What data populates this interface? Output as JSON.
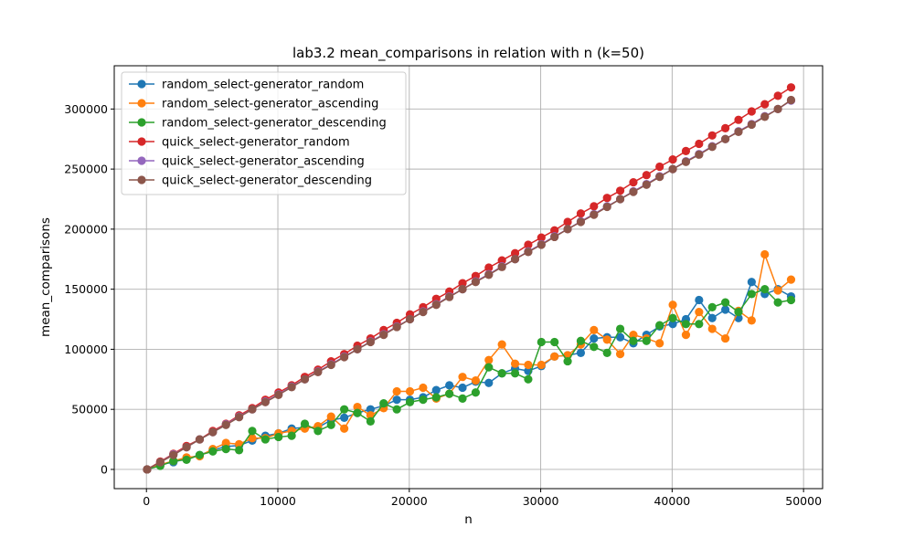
{
  "chart_data": {
    "type": "line",
    "title": "lab3.2 mean_comparisons in relation with n (k=50)",
    "xlabel": "n",
    "ylabel": "mean_comparisons",
    "xlim": [
      -2450,
      51450
    ],
    "ylim": [
      -16000,
      336000
    ],
    "xticks": [
      0,
      10000,
      20000,
      30000,
      40000,
      50000
    ],
    "yticks": [
      0,
      50000,
      100000,
      150000,
      200000,
      250000,
      300000
    ],
    "xtick_labels": [
      "0",
      "10000",
      "20000",
      "30000",
      "40000",
      "50000"
    ],
    "ytick_labels": [
      "0",
      "50000",
      "100000",
      "150000",
      "200000",
      "250000",
      "300000"
    ],
    "grid": true,
    "legend_position": "upper-left",
    "x": [
      50,
      1050,
      2050,
      3050,
      4050,
      5050,
      6050,
      7050,
      8050,
      9050,
      10050,
      11050,
      12050,
      13050,
      14050,
      15050,
      16050,
      17050,
      18050,
      19050,
      20050,
      21050,
      22050,
      23050,
      24050,
      25050,
      26050,
      27050,
      28050,
      29050,
      30050,
      31050,
      32050,
      33050,
      34050,
      35050,
      36050,
      37050,
      38050,
      39050,
      40050,
      41050,
      42050,
      43050,
      44050,
      45050,
      46050,
      47050,
      48050,
      49050
    ],
    "series": [
      {
        "name": "random_select-generator_random",
        "color": "#1f77b4",
        "values": [
          0,
          4000,
          6000,
          9000,
          12000,
          16000,
          19000,
          20000,
          24000,
          28000,
          30000,
          34000,
          35000,
          35000,
          41000,
          43000,
          47000,
          50000,
          53000,
          58000,
          58000,
          60000,
          66000,
          70000,
          68000,
          73000,
          72000,
          80000,
          84000,
          82000,
          86000,
          94000,
          95000,
          97000,
          109000,
          110000,
          110000,
          105000,
          112000,
          119000,
          121000,
          125000,
          141000,
          126000,
          133000,
          126000,
          156000,
          146000,
          150000,
          144000
        ]
      },
      {
        "name": "random_select-generator_ascending",
        "color": "#ff7f0e",
        "values": [
          0,
          4000,
          7000,
          10000,
          11000,
          17000,
          22000,
          21000,
          26000,
          26000,
          30000,
          32000,
          34000,
          36000,
          44000,
          34000,
          52000,
          45000,
          51000,
          65000,
          65000,
          68000,
          59000,
          63000,
          77000,
          74000,
          91000,
          104000,
          88000,
          87000,
          87000,
          94000,
          95000,
          104000,
          116000,
          108000,
          96000,
          112000,
          109000,
          105000,
          137000,
          112000,
          131000,
          117000,
          109000,
          132000,
          124000,
          179000,
          149000,
          158000
        ]
      },
      {
        "name": "random_select-generator_descending",
        "color": "#2ca02c",
        "values": [
          0,
          3000,
          7000,
          8000,
          12000,
          15000,
          17000,
          16000,
          32000,
          25000,
          27000,
          28000,
          38000,
          32000,
          37000,
          50000,
          47000,
          40000,
          55000,
          50000,
          56000,
          58000,
          60000,
          63000,
          59000,
          64000,
          85000,
          80000,
          80000,
          75000,
          106000,
          106000,
          90000,
          107000,
          102000,
          97000,
          117000,
          107000,
          107000,
          120000,
          126000,
          121000,
          121000,
          135000,
          139000,
          131000,
          146000,
          150000,
          139000,
          141000
        ]
      },
      {
        "name": "quick_select-generator_random",
        "color": "#d62728",
        "values": [
          0,
          6500,
          13000,
          19500,
          25000,
          32000,
          38000,
          45000,
          51000,
          58000,
          64000,
          70000,
          77000,
          83000,
          90000,
          96000,
          103000,
          109000,
          116000,
          122000,
          129000,
          135000,
          142000,
          148000,
          155000,
          161000,
          168000,
          174000,
          180000,
          187000,
          193000,
          199000,
          206000,
          213000,
          219000,
          226000,
          232000,
          239000,
          245000,
          252000,
          258000,
          265000,
          271000,
          278000,
          284000,
          291000,
          298000,
          304000,
          311000,
          318000
        ]
      },
      {
        "name": "quick_select-generator_ascending",
        "color": "#9467bd",
        "values": [
          0,
          6000,
          12500,
          18500,
          25000,
          31000,
          37500,
          44000,
          50000,
          56500,
          62500,
          69000,
          75000,
          81500,
          87500,
          94000,
          100000,
          106500,
          112500,
          119000,
          125000,
          131500,
          137500,
          144000,
          150000,
          156500,
          162500,
          169000,
          175000,
          181500,
          187500,
          194000,
          200000,
          206500,
          212500,
          219000,
          225000,
          231500,
          237500,
          244000,
          250000,
          256500,
          262500,
          269000,
          275000,
          281500,
          287500,
          294000,
          300000,
          307000
        ]
      },
      {
        "name": "quick_select-generator_descending",
        "color": "#8c564b",
        "values": [
          0,
          6000,
          12000,
          18500,
          25000,
          31000,
          37000,
          43500,
          50000,
          56000,
          62000,
          68500,
          75000,
          81000,
          87000,
          93500,
          100000,
          106000,
          112000,
          118500,
          125000,
          131000,
          137000,
          143500,
          150000,
          156000,
          162000,
          168500,
          175000,
          181000,
          187000,
          193500,
          200000,
          206000,
          212000,
          218500,
          225000,
          231000,
          237000,
          243500,
          250000,
          256000,
          262000,
          268500,
          275000,
          281000,
          287000,
          293500,
          300000,
          307500
        ]
      }
    ]
  }
}
